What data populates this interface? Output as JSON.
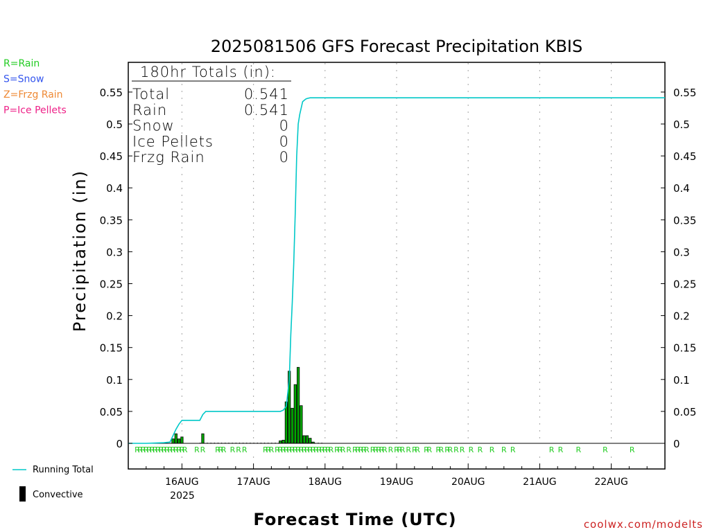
{
  "chart_data": {
    "type": "line",
    "title": "2025081506 GFS Forecast Precipitation KBIS",
    "xlabel": "Forecast Time (UTC)",
    "ylabel": "Precipitation (in)",
    "ylim": [
      -0.035,
      0.59
    ],
    "y_ticks": [
      0,
      0.05,
      0.1,
      0.15,
      0.2,
      0.25,
      0.3,
      0.35,
      0.4,
      0.45,
      0.5,
      0.55
    ],
    "y_tick_labels": [
      "0",
      "0.05",
      "0.1",
      "0.15",
      "0.2",
      "0.25",
      "0.3",
      "0.35",
      "0.4",
      "0.45",
      "0.5",
      "0.55"
    ],
    "x_unit": "hours since 2025-08-15 00 UTC",
    "xlim": [
      6,
      186
    ],
    "x_ticks": [
      24,
      48,
      72,
      96,
      120,
      144,
      168
    ],
    "x_tick_labels": [
      "16AUG",
      "17AUG",
      "18AUG",
      "19AUG",
      "20AUG",
      "21AUG",
      "22AUG"
    ],
    "x_year_label": "2025",
    "grid": "vertical dotted",
    "series": [
      {
        "name": "Running Total",
        "color": "#00c8c8",
        "x": [
          6,
          12,
          18,
          20,
          21,
          22,
          23,
          24,
          26,
          28,
          30,
          31,
          32,
          34,
          40,
          46,
          48,
          50,
          52,
          54,
          57,
          58,
          59,
          60,
          60.5,
          61,
          61.5,
          62,
          62.5,
          63,
          63.5,
          64,
          64.5,
          65,
          65.5,
          66,
          67,
          68,
          70,
          72,
          80,
          100,
          120,
          140,
          160,
          186
        ],
        "values": [
          0,
          0,
          0.001,
          0.002,
          0.012,
          0.022,
          0.03,
          0.036,
          0.036,
          0.036,
          0.036,
          0.045,
          0.05,
          0.05,
          0.05,
          0.05,
          0.05,
          0.05,
          0.05,
          0.05,
          0.05,
          0.052,
          0.058,
          0.1,
          0.17,
          0.22,
          0.28,
          0.36,
          0.45,
          0.5,
          0.515,
          0.525,
          0.535,
          0.537,
          0.539,
          0.54,
          0.541,
          0.541,
          0.541,
          0.541,
          0.541,
          0.541,
          0.541,
          0.541,
          0.541,
          0.541
        ]
      },
      {
        "name": "Convective",
        "type": "bar",
        "color": "#000000",
        "x": [
          21,
          22,
          23,
          24,
          31,
          57,
          58,
          59,
          60,
          61,
          62,
          63,
          64,
          65,
          66,
          67,
          68
        ],
        "values": [
          0.007,
          0.015,
          0.007,
          0.01,
          0.015,
          0.004,
          0.005,
          0.065,
          0.113,
          0.055,
          0.092,
          0.119,
          0.059,
          0.012,
          0.012,
          0.008,
          0.002
        ]
      }
    ],
    "precip_type_x": [
      9,
      10,
      11,
      12,
      13,
      14,
      15,
      16,
      17,
      18,
      19,
      20,
      21,
      22,
      23,
      24,
      25,
      29,
      31,
      36,
      37,
      38,
      41,
      43,
      45,
      52,
      53,
      54,
      56,
      57,
      58,
      59,
      60,
      61,
      62,
      63,
      64,
      65,
      66,
      67,
      68,
      69,
      70,
      71,
      72,
      73,
      74,
      76,
      77,
      78,
      80,
      82,
      83,
      84,
      85,
      86,
      88,
      89,
      90,
      91,
      92,
      94,
      96,
      97,
      98,
      100,
      102,
      103,
      106,
      107,
      110,
      111,
      113,
      114,
      116,
      118,
      121,
      124,
      128,
      132,
      135,
      148,
      151,
      157,
      166,
      175
    ],
    "precip_type_symbol": "R",
    "totals_box": {
      "heading": "180hr Totals (in):",
      "rows": [
        {
          "label": "Total",
          "value": "0.541"
        },
        {
          "label": "Rain",
          "value": "0.541"
        },
        {
          "label": "Snow",
          "value": "0"
        },
        {
          "label": "Ice Pellets",
          "value": "0"
        },
        {
          "label": "Frzg Rain",
          "value": "0"
        }
      ]
    },
    "type_legend": [
      {
        "text": "R=Rain",
        "color": "#22cc22"
      },
      {
        "text": "S=Snow",
        "color": "#3355ee"
      },
      {
        "text": "Z=Frzg Rain",
        "color": "#ee8833"
      },
      {
        "text": "P=Ice Pellets",
        "color": "#ee2288"
      }
    ],
    "series_legend": [
      {
        "text": "Running Total",
        "color": "#00c8c8",
        "symbol": "line"
      },
      {
        "text": "Convective",
        "color": "#000000",
        "symbol": "bar"
      }
    ]
  },
  "credit": "coolwx.com/modelts",
  "colors": {
    "running_total": "#00c8c8",
    "bar_fill": "#00aa00",
    "bar_edge": "#000000",
    "rain_marker": "#22cc22",
    "credit": "#cc2222"
  }
}
